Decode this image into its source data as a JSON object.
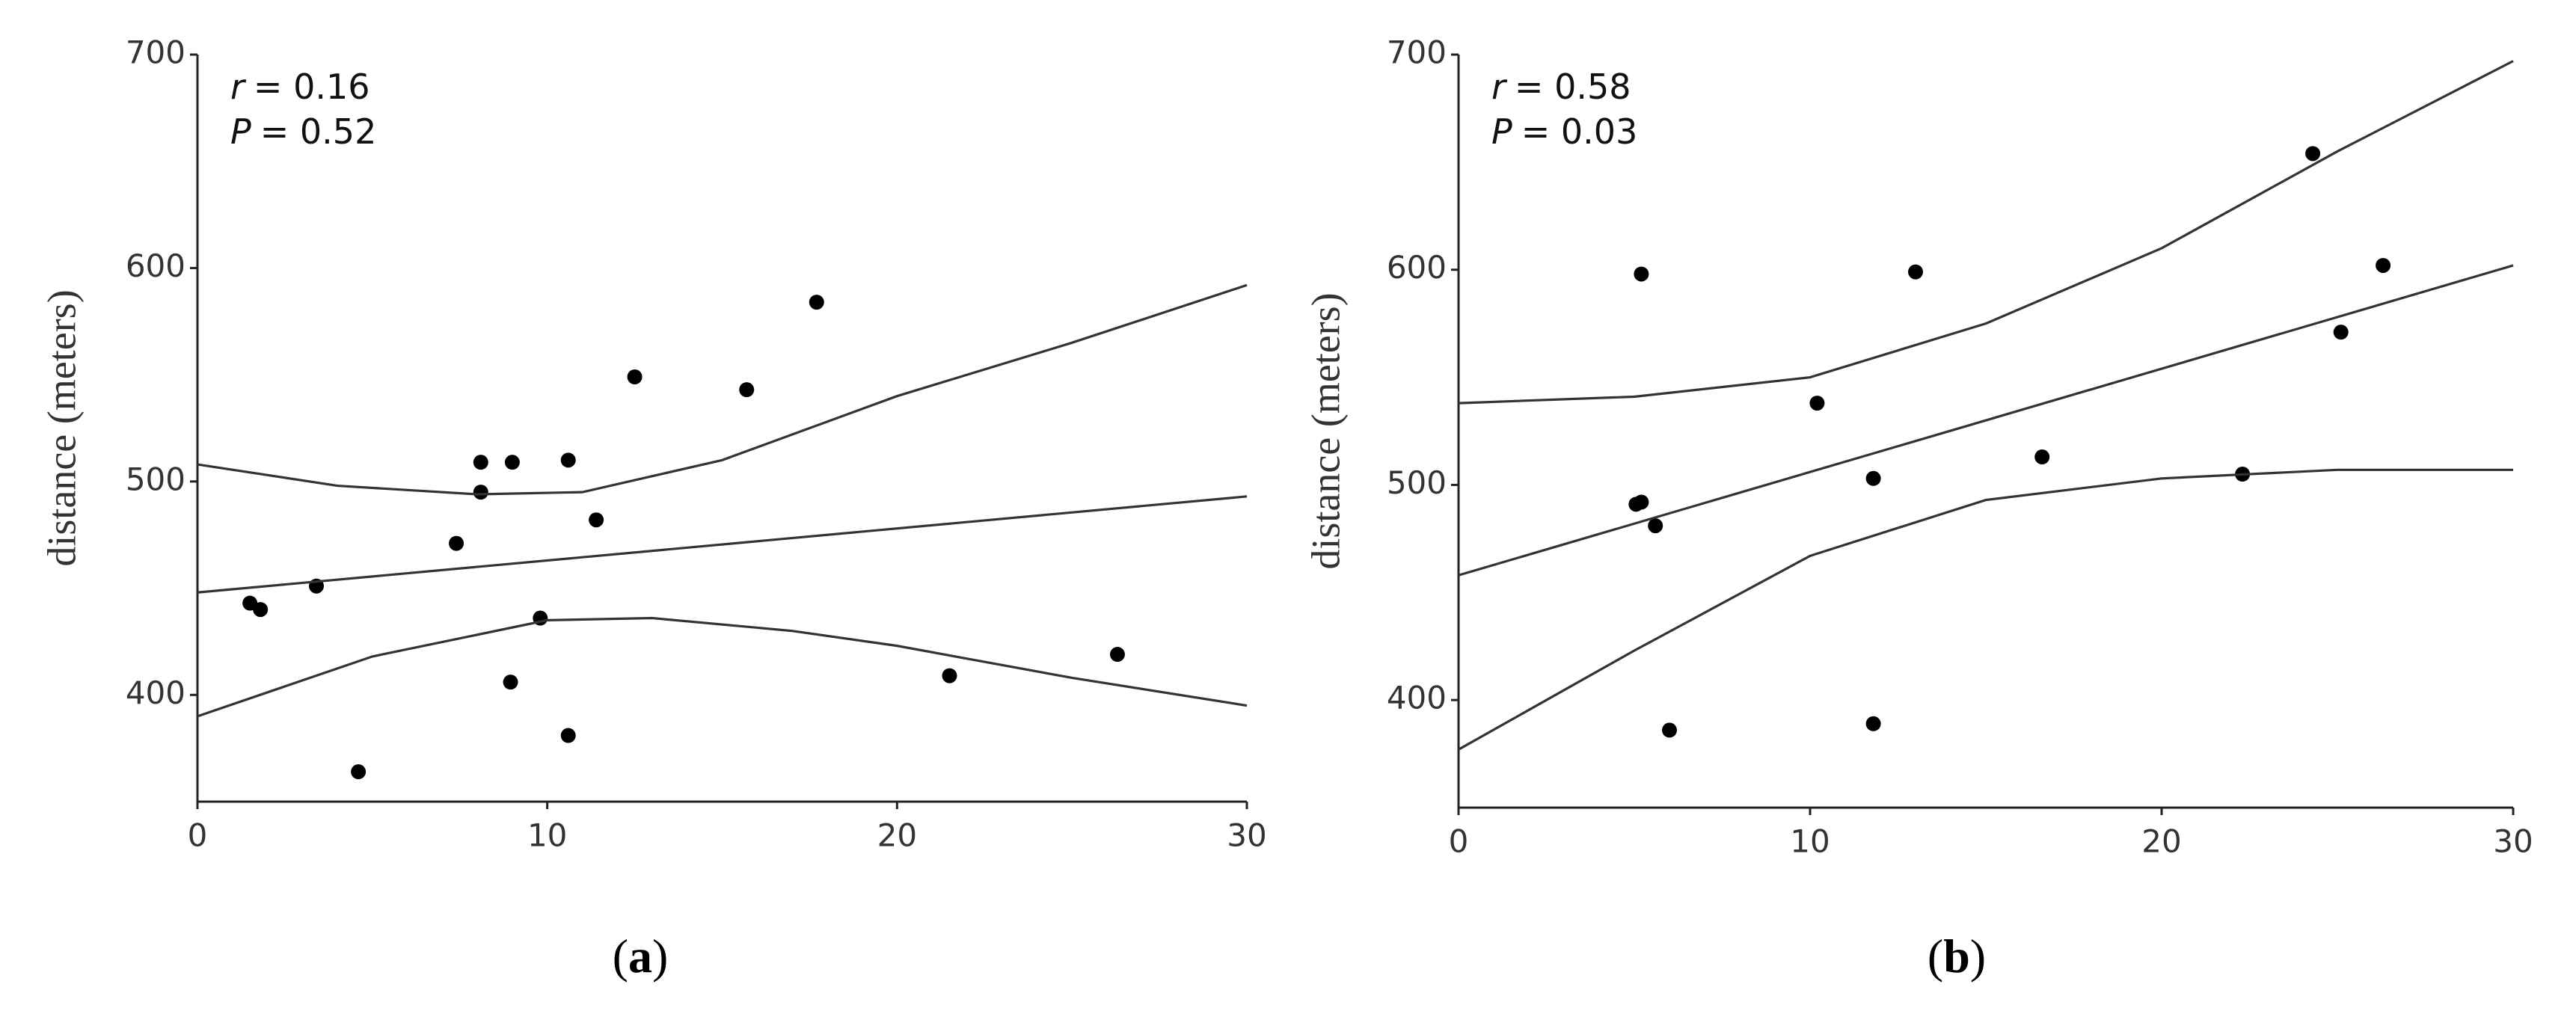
{
  "chart_data": [
    {
      "type": "scatter",
      "y_label": "distance (meters)",
      "stats": [
        {
          "symbol": "r",
          "text": "= 0.16"
        },
        {
          "symbol": "P",
          "text": "= 0.52"
        }
      ],
      "caption": {
        "open": "(",
        "label": "a",
        "close": ")"
      },
      "xlim": [
        0,
        30
      ],
      "ylim": [
        350,
        700
      ],
      "xticks": [
        0,
        10,
        20,
        30
      ],
      "yticks": [
        400,
        500,
        600,
        700
      ],
      "series": [
        {
          "type": "scatter",
          "color": "#000000",
          "x": [
            1.5,
            1.8,
            3.4,
            4.6,
            7.4,
            8.1,
            8.1,
            9.0,
            8.95,
            9.8,
            10.6,
            10.6,
            11.4,
            12.5,
            15.7,
            17.7,
            21.5,
            26.3
          ],
          "values": [
            443,
            440,
            451,
            364,
            471,
            509,
            495,
            509,
            406,
            436,
            510,
            381,
            482,
            549,
            543,
            584,
            409,
            419
          ]
        },
        {
          "type": "line",
          "color": "#333333",
          "x": [
            0,
            30
          ],
          "values": [
            448,
            493
          ]
        },
        {
          "type": "line",
          "color": "#333333",
          "x": [
            0,
            4,
            8,
            11,
            15,
            20,
            25,
            30
          ],
          "values": [
            508,
            498,
            494,
            495,
            510,
            540,
            565,
            592
          ]
        },
        {
          "type": "line",
          "color": "#333333",
          "x": [
            0,
            5,
            10,
            13,
            17,
            20,
            25,
            30
          ],
          "values": [
            390,
            418,
            435,
            436,
            430,
            423,
            408,
            395
          ]
        }
      ]
    },
    {
      "type": "scatter",
      "y_label": "distance (meters)",
      "stats": [
        {
          "symbol": "r",
          "text": "= 0.58"
        },
        {
          "symbol": "P",
          "text": "= 0.03"
        }
      ],
      "caption": {
        "open": "(",
        "label": "b",
        "close": ")"
      },
      "xlim": [
        0,
        30
      ],
      "ylim": [
        350,
        700
      ],
      "xticks": [
        0,
        10,
        20,
        30
      ],
      "yticks": [
        400,
        500,
        600,
        700
      ],
      "series": [
        {
          "type": "scatter",
          "color": "#000000",
          "x": [
            5.2,
            5.05,
            5.2,
            5.6,
            6.0,
            10.2,
            11.8,
            11.8,
            13.0,
            16.6,
            22.3,
            24.3,
            25.1,
            26.3
          ],
          "values": [
            598,
            491,
            492,
            481,
            386,
            538,
            503,
            389,
            599,
            513,
            505,
            654,
            571,
            602
          ]
        },
        {
          "type": "line",
          "color": "#333333",
          "x": [
            0,
            30
          ],
          "values": [
            458,
            602
          ]
        },
        {
          "type": "line",
          "color": "#333333",
          "x": [
            0,
            5,
            10,
            15,
            20,
            25,
            30
          ],
          "values": [
            538,
            541,
            550,
            575,
            610,
            655,
            697
          ]
        },
        {
          "type": "line",
          "color": "#333333",
          "x": [
            0,
            5,
            10,
            15,
            20,
            25,
            30
          ],
          "values": [
            377,
            423,
            467,
            493,
            503,
            507,
            507
          ]
        }
      ]
    }
  ]
}
